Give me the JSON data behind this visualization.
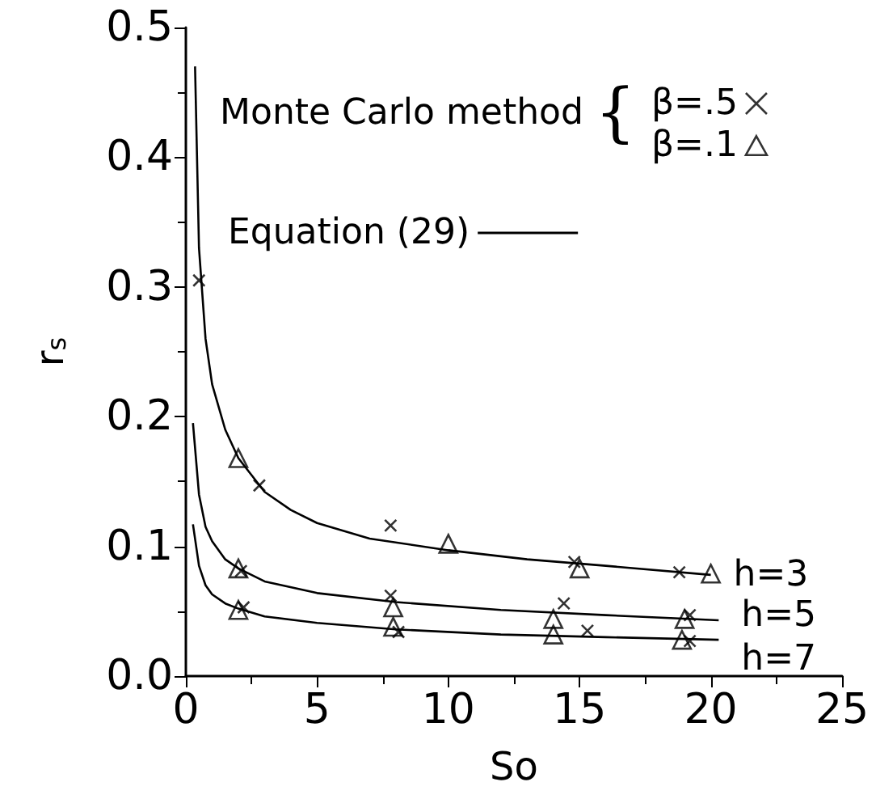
{
  "chart_data": {
    "type": "scatter",
    "xlabel": "So",
    "ylabel": "r$_{s}$",
    "xlim": [
      0,
      25
    ],
    "xticks": [
      0,
      5,
      10,
      15,
      20,
      25
    ],
    "ylim": [
      0,
      0.5
    ],
    "yticks": [
      {
        "value": 0,
        "label": "0.0"
      },
      0.1,
      0.2,
      0.3,
      0.4,
      0.5
    ],
    "grid": false,
    "legend": "top",
    "annotations": [
      "Monte Carlo method {",
      "h=3",
      "h=5",
      "h=7"
    ],
    "series": [
      {
        "name": "β=.5",
        "marker": "cross",
        "color": "#000000",
        "x": [
          0.5,
          2.8,
          7.8,
          14.8,
          18.8,
          2.1,
          7.8,
          14.4,
          19.2,
          2.2,
          8.1,
          15.3,
          19.2
        ],
        "values": [
          0.305,
          0.147,
          0.116,
          0.088,
          0.08,
          0.081,
          0.062,
          0.056,
          0.047,
          0.053,
          0.034,
          0.035,
          0.027
        ]
      },
      {
        "name": "β=.1",
        "marker": "triangle",
        "color": "#000000",
        "x": [
          2.0,
          10,
          15,
          20,
          2.0,
          7.9,
          14,
          19,
          2.0,
          7.9,
          14,
          18.9
        ],
        "values": [
          0.168,
          0.102,
          0.083,
          0.079,
          0.083,
          0.053,
          0.044,
          0.044,
          0.051,
          0.038,
          0.032,
          0.028
        ]
      },
      {
        "name": "Equation (29)",
        "type": "line",
        "marker": "none",
        "line_style": "solid",
        "color": "#000000",
        "x": [
          0.35,
          0.5,
          0.75,
          1,
          1.5,
          2,
          3,
          4,
          5,
          7,
          10,
          13,
          16,
          20,
          null,
          0.27,
          0.5,
          0.75,
          1,
          1.5,
          2,
          3,
          5,
          8,
          12,
          16,
          20.3,
          null,
          0.27,
          0.5,
          0.75,
          1,
          1.5,
          2,
          3,
          5,
          8,
          12,
          16,
          20.3
        ],
        "values": [
          0.47,
          0.33,
          0.26,
          0.225,
          0.19,
          0.168,
          0.142,
          0.128,
          0.118,
          0.106,
          0.097,
          0.09,
          0.085,
          0.078,
          null,
          0.195,
          0.14,
          0.115,
          0.104,
          0.09,
          0.083,
          0.073,
          0.064,
          0.057,
          0.051,
          0.047,
          0.043,
          null,
          0.117,
          0.085,
          0.07,
          0.063,
          0.056,
          0.052,
          0.046,
          0.041,
          0.036,
          0.032,
          0.03,
          0.028
        ]
      }
    ]
  }
}
